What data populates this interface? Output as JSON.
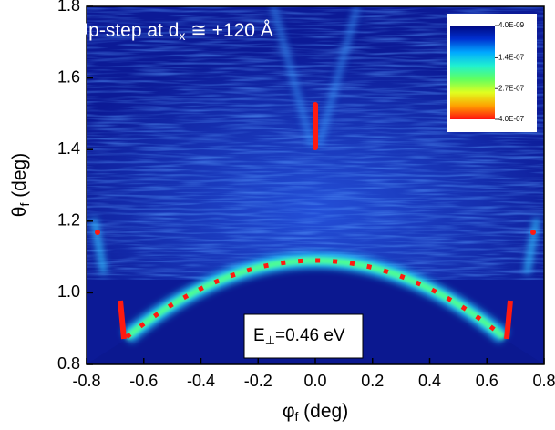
{
  "chart_data": {
    "type": "heatmap",
    "annotation": [
      "Up-step at d",
      "x",
      " ≅ +120 Å"
    ],
    "energy_label": [
      "E",
      "⊥",
      "=0.46 eV"
    ],
    "xlabel": [
      "φ",
      "f",
      " (deg)"
    ],
    "ylabel": [
      "θ",
      "f",
      " (deg)"
    ],
    "xlim": [
      -0.8,
      0.8
    ],
    "xticks": [
      -0.8,
      -0.6,
      -0.4,
      -0.2,
      {
        "value": 0,
        "label": "0.0"
      },
      0.2,
      0.4,
      0.6,
      0.8
    ],
    "ylim": [
      0.8,
      1.8
    ],
    "yticks": [
      0.8,
      {
        "value": 1,
        "label": "1.0"
      },
      1.2,
      1.4,
      1.6,
      1.8
    ],
    "colorbar": {
      "lim": [
        4e-09,
        4e-07
      ],
      "ticks": [
        {
          "value": 4e-09,
          "label": "4.0E-09"
        },
        {
          "value": 1.4e-07,
          "label": "1.4E-07"
        },
        {
          "value": 2.7e-07,
          "label": "2.7E-07"
        },
        {
          "value": 4e-07,
          "label": "4.0E-07"
        }
      ],
      "colors": [
        "#00087f",
        "#0030d0",
        "#00a8ff",
        "#20f0d0",
        "#60ff60",
        "#e0ff20",
        "#ffa000",
        "#ff1010"
      ]
    }
  }
}
